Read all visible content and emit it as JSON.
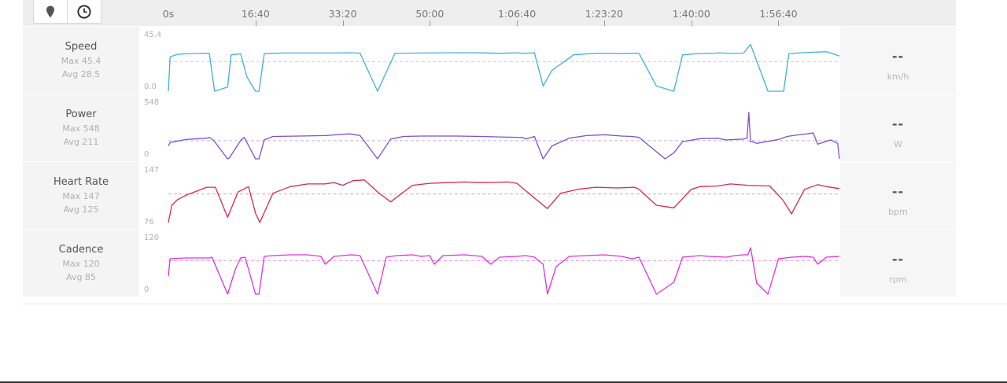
{
  "toolbar": {
    "map_button_icon": "map-marker-icon",
    "time_button_icon": "clock-icon"
  },
  "chart_data": {
    "type": "line",
    "x_axis": {
      "unit": "seconds",
      "range": [
        0,
        7700
      ],
      "ticks": [
        0,
        1000,
        2000,
        3000,
        4000,
        5000,
        6000,
        7000
      ],
      "tick_labels": [
        "0s",
        "16:40",
        "33:20",
        "50:00",
        "1:06:40",
        "1:23:20",
        "1:40:00",
        "1:56:40"
      ]
    },
    "legend": "none",
    "grid": false,
    "series": [
      {
        "name": "Speed",
        "color": "#3fb0dc",
        "ylim": [
          0,
          45.4
        ],
        "ymin_label": "0.0",
        "ymax_label": "45.4",
        "max_label": "Max 45.4",
        "avg_label": "Avg 28.5",
        "avg": 28.5,
        "current": "--",
        "unit": "km/h",
        "x": [
          0,
          20,
          100,
          200,
          400,
          470,
          530,
          680,
          720,
          830,
          900,
          1000,
          1040,
          1100,
          1200,
          1350,
          1600,
          1900,
          2080,
          2200,
          2400,
          2600,
          2900,
          3300,
          3600,
          3800,
          4000,
          4080,
          4200,
          4300,
          4400,
          4650,
          4830,
          5000,
          5160,
          5320,
          5400,
          5600,
          5800,
          5900,
          6050,
          6270,
          6320,
          6450,
          6600,
          6680,
          6880,
          7060,
          7120,
          7250,
          7400,
          7550,
          7700
        ],
        "y": [
          0,
          33,
          35.5,
          36,
          36.5,
          36.5,
          0,
          4,
          35,
          36,
          14,
          0,
          0,
          36,
          36.5,
          36.8,
          36.8,
          36.8,
          37,
          36.6,
          0,
          36.5,
          36.8,
          37,
          36.9,
          36.5,
          37,
          36.5,
          37,
          5,
          20,
          35,
          36,
          36.6,
          36.2,
          36.5,
          36.5,
          5,
          0,
          35,
          36,
          36.6,
          37,
          36.4,
          36.6,
          45,
          0,
          0,
          36,
          37,
          37.5,
          38,
          34
        ]
      },
      {
        "name": "Power",
        "color": "#7e4fcf",
        "ylim": [
          0,
          548
        ],
        "ymin_label": "0",
        "ymax_label": "548",
        "max_label": "Max 548",
        "avg_label": "Avg 211",
        "avg": 211,
        "current": "--",
        "unit": "W",
        "x": [
          0,
          20,
          200,
          440,
          470,
          520,
          680,
          700,
          830,
          870,
          1000,
          1040,
          1100,
          1200,
          1500,
          1800,
          2080,
          2200,
          2400,
          2550,
          2700,
          2900,
          3300,
          3600,
          3800,
          4000,
          4060,
          4100,
          4200,
          4300,
          4400,
          4600,
          4800,
          5000,
          5200,
          5320,
          5400,
          5700,
          5800,
          5900,
          6100,
          6300,
          6400,
          6600,
          6640,
          6660,
          6680,
          6700,
          6750,
          7000,
          7100,
          7200,
          7400,
          7450,
          7600,
          7680,
          7700
        ],
        "y": [
          150,
          190,
          225,
          240,
          250,
          215,
          0,
          10,
          215,
          250,
          0,
          0,
          220,
          260,
          265,
          270,
          290,
          270,
          0,
          230,
          260,
          265,
          265,
          260,
          255,
          250,
          250,
          230,
          260,
          0,
          150,
          240,
          270,
          280,
          265,
          260,
          250,
          0,
          70,
          200,
          235,
          240,
          220,
          230,
          240,
          540,
          200,
          200,
          180,
          225,
          260,
          275,
          300,
          170,
          220,
          180,
          0
        ]
      },
      {
        "name": "Heart Rate",
        "color": "#d6294a",
        "ylim": [
          76,
          147
        ],
        "ymin_label": "76",
        "ymax_label": "147",
        "max_label": "Max 147",
        "avg_label": "Avg 125",
        "avg": 125,
        "current": "--",
        "unit": "bpm",
        "x": [
          0,
          40,
          100,
          200,
          300,
          440,
          540,
          680,
          800,
          920,
          1000,
          1050,
          1200,
          1400,
          1600,
          1800,
          1900,
          2000,
          2120,
          2250,
          2400,
          2550,
          2800,
          3000,
          3200,
          3400,
          3600,
          3900,
          4000,
          4300,
          4350,
          4500,
          4700,
          4900,
          5150,
          5350,
          5400,
          5600,
          5800,
          6000,
          6100,
          6300,
          6450,
          6650,
          6900,
          7050,
          7150,
          7300,
          7450,
          7550,
          7700
        ],
        "y": [
          82,
          108,
          116,
          123,
          128,
          135,
          135,
          90,
          128,
          136,
          96,
          82,
          126,
          136,
          140,
          140,
          142,
          138,
          145,
          146,
          128,
          113,
          138,
          141,
          142,
          143,
          142,
          143,
          141,
          108,
          103,
          126,
          132,
          135,
          134,
          135,
          132,
          108,
          104,
          132,
          136,
          137,
          140,
          138,
          137,
          116,
          95,
          132,
          139,
          136,
          133
        ]
      },
      {
        "name": "Cadence",
        "color": "#e030e0",
        "ylim": [
          0,
          120
        ],
        "ymin_label": "0",
        "ymax_label": "120",
        "max_label": "Max 120",
        "avg_label": "Avg 85",
        "avg": 85,
        "current": "--",
        "unit": "rpm",
        "x": [
          0,
          20,
          200,
          470,
          500,
          680,
          770,
          830,
          880,
          1000,
          1040,
          1100,
          1200,
          1400,
          1600,
          1750,
          1800,
          1900,
          2100,
          2200,
          2400,
          2500,
          2620,
          2800,
          2900,
          3000,
          3050,
          3150,
          3400,
          3600,
          3700,
          3800,
          4000,
          4100,
          4200,
          4300,
          4350,
          4450,
          4600,
          4800,
          5000,
          5200,
          5320,
          5400,
          5600,
          5800,
          5900,
          6000,
          6100,
          6200,
          6400,
          6500,
          6600,
          6650,
          6680,
          6700,
          6750,
          6880,
          7000,
          7150,
          7300,
          7400,
          7450,
          7550,
          7700
        ],
        "y": [
          46,
          90,
          92,
          92,
          94,
          0,
          64,
          92,
          94,
          0,
          0,
          96,
          98,
          100,
          100,
          96,
          76,
          96,
          100,
          98,
          0,
          94,
          98,
          100,
          96,
          98,
          76,
          98,
          100,
          96,
          76,
          94,
          96,
          98,
          94,
          76,
          0,
          70,
          96,
          98,
          100,
          96,
          90,
          94,
          0,
          30,
          94,
          96,
          98,
          96,
          94,
          98,
          100,
          100,
          118,
          94,
          28,
          0,
          90,
          94,
          96,
          94,
          76,
          94,
          96
        ]
      }
    ]
  }
}
